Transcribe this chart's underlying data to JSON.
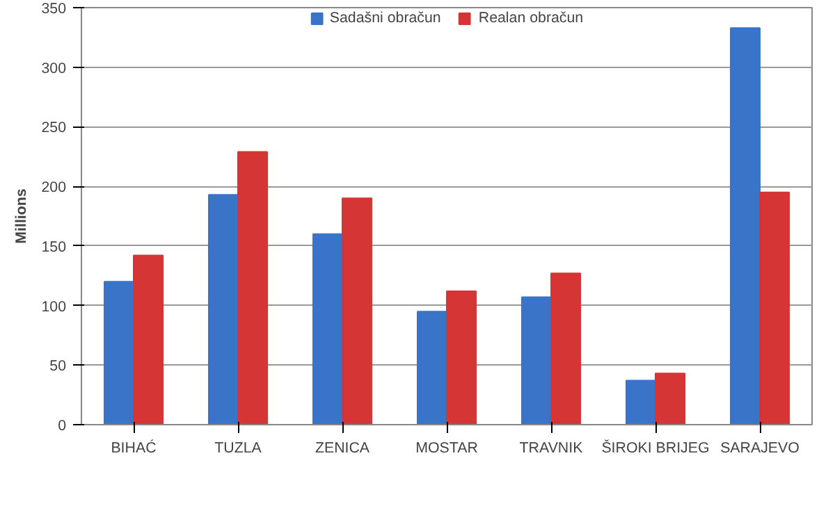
{
  "chart_data": {
    "type": "bar",
    "ylabel": "Millions",
    "categories": [
      "BIHAĆ",
      "TUZLA",
      "ZENICA",
      "MOSTAR",
      "TRAVNIK",
      "ŠIROKI BRIJEG",
      "SARAJEVO"
    ],
    "series": [
      {
        "name": "Sadašni obračun",
        "color": "#3a74c8",
        "values": [
          120,
          193,
          160,
          95,
          107,
          37,
          333
        ]
      },
      {
        "name": "Realan obračun",
        "color": "#d63535",
        "values": [
          142,
          229,
          190,
          112,
          127,
          43,
          195
        ]
      }
    ],
    "ylim": [
      0,
      350
    ],
    "yticks": [
      0,
      50,
      100,
      150,
      200,
      250,
      300,
      350
    ],
    "grid": "y",
    "legend": "top"
  }
}
